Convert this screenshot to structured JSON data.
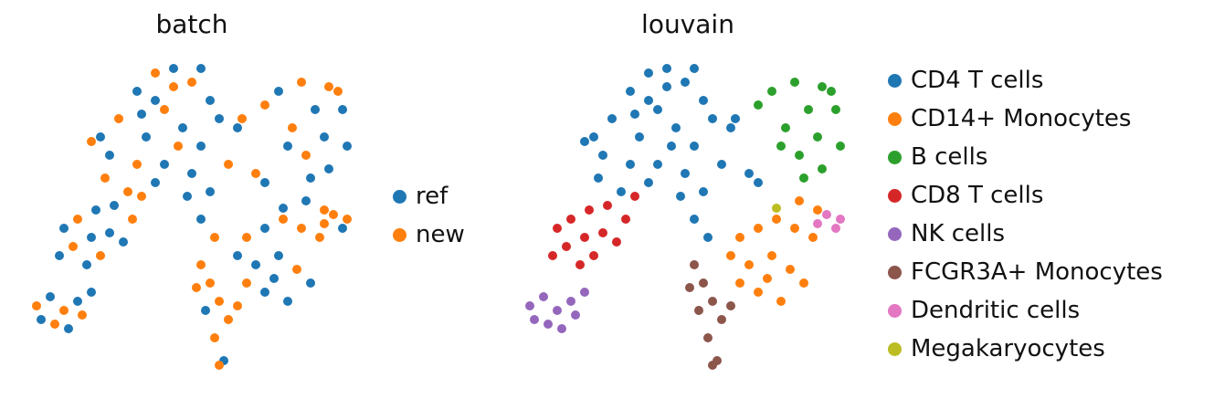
{
  "chart_data": [
    {
      "type": "scatter",
      "title": "batch",
      "color_by": "batch",
      "categories": [
        "ref",
        "new"
      ],
      "colors": [
        "#1f77b4",
        "#ff7f0e"
      ],
      "legend_position": "right",
      "axes_visible": false,
      "grid": false
    },
    {
      "type": "scatter",
      "title": "louvain",
      "color_by": "louvain",
      "categories": [
        "CD4 T cells",
        "CD14+ Monocytes",
        "B cells",
        "CD8 T cells",
        "NK cells",
        "FCGR3A+ Monocytes",
        "Dendritic cells",
        "Megakaryocytes"
      ],
      "colors": [
        "#1f77b4",
        "#ff7f0e",
        "#2ca02c",
        "#d62728",
        "#9467bd",
        "#8c564b",
        "#e377c2",
        "#bcbd22"
      ],
      "legend_position": "right",
      "axes_visible": false,
      "grid": false
    }
  ],
  "points_fields": [
    "x",
    "y",
    "louvain",
    "batch"
  ],
  "points": [
    [
      90,
      270,
      0,
      0
    ],
    [
      110,
      290,
      0,
      1
    ],
    [
      130,
      320,
      0,
      0
    ],
    [
      150,
      340,
      0,
      1
    ],
    [
      170,
      345,
      0,
      0
    ],
    [
      190,
      330,
      0,
      1
    ],
    [
      210,
      310,
      0,
      0
    ],
    [
      160,
      300,
      0,
      1
    ],
    [
      140,
      270,
      0,
      0
    ],
    [
      180,
      280,
      0,
      0
    ],
    [
      200,
      260,
      0,
      0
    ],
    [
      220,
      290,
      0,
      0
    ],
    [
      240,
      280,
      0,
      0
    ],
    [
      130,
      240,
      0,
      1
    ],
    [
      160,
      240,
      0,
      0
    ],
    [
      190,
      230,
      0,
      0
    ],
    [
      100,
      250,
      0,
      0
    ],
    [
      80,
      265,
      0,
      1
    ],
    [
      120,
      210,
      0,
      1
    ],
    [
      150,
      220,
      0,
      0
    ],
    [
      210,
      210,
      0,
      0
    ],
    [
      230,
      240,
      0,
      1
    ],
    [
      260,
      230,
      0,
      1
    ],
    [
      200,
      180,
      0,
      0
    ],
    [
      215,
      160,
      0,
      1
    ],
    [
      150,
      310,
      0,
      0
    ],
    [
      175,
      260,
      0,
      1
    ],
    [
      135,
      295,
      0,
      0
    ],
    [
      95,
      225,
      0,
      1
    ],
    [
      245,
      290,
      0,
      1
    ],
    [
      270,
      220,
      0,
      0
    ],
    [
      185,
      205,
      0,
      0
    ],
    [
      170,
      325,
      0,
      1
    ],
    [
      200,
      345,
      0,
      0
    ],
    [
      285,
      320,
      2,
      0
    ],
    [
      310,
      330,
      2,
      1
    ],
    [
      340,
      325,
      2,
      1
    ],
    [
      355,
      300,
      2,
      0
    ],
    [
      325,
      300,
      2,
      0
    ],
    [
      300,
      280,
      2,
      1
    ],
    [
      335,
      270,
      2,
      0
    ],
    [
      360,
      260,
      2,
      0
    ],
    [
      315,
      250,
      2,
      1
    ],
    [
      340,
      235,
      2,
      0
    ],
    [
      295,
      260,
      2,
      0
    ],
    [
      270,
      305,
      2,
      1
    ],
    [
      350,
      320,
      2,
      1
    ],
    [
      320,
      225,
      2,
      0
    ],
    [
      50,
      170,
      3,
      0
    ],
    [
      65,
      180,
      3,
      1
    ],
    [
      85,
      190,
      3,
      0
    ],
    [
      105,
      195,
      3,
      0
    ],
    [
      125,
      180,
      3,
      1
    ],
    [
      80,
      160,
      3,
      0
    ],
    [
      60,
      150,
      3,
      1
    ],
    [
      45,
      140,
      3,
      0
    ],
    [
      100,
      165,
      3,
      0
    ],
    [
      135,
      205,
      3,
      1
    ],
    [
      75,
      130,
      3,
      0
    ],
    [
      90,
      140,
      3,
      1
    ],
    [
      115,
      155,
      3,
      0
    ],
    [
      20,
      85,
      4,
      1
    ],
    [
      35,
      95,
      4,
      0
    ],
    [
      50,
      80,
      4,
      1
    ],
    [
      65,
      90,
      4,
      0
    ],
    [
      40,
      65,
      4,
      1
    ],
    [
      25,
      70,
      4,
      0
    ],
    [
      55,
      60,
      4,
      0
    ],
    [
      70,
      75,
      4,
      1
    ],
    [
      80,
      100,
      4,
      0
    ],
    [
      250,
      160,
      1,
      1
    ],
    [
      270,
      170,
      1,
      0
    ],
    [
      290,
      180,
      1,
      1
    ],
    [
      310,
      170,
      1,
      1
    ],
    [
      330,
      160,
      1,
      1
    ],
    [
      260,
      130,
      1,
      0
    ],
    [
      285,
      140,
      1,
      0
    ],
    [
      305,
      125,
      1,
      1
    ],
    [
      320,
      110,
      1,
      0
    ],
    [
      270,
      100,
      1,
      0
    ],
    [
      295,
      90,
      1,
      0
    ],
    [
      250,
      110,
      1,
      1
    ],
    [
      335,
      190,
      1,
      1
    ],
    [
      315,
      200,
      1,
      0
    ],
    [
      280,
      115,
      1,
      0
    ],
    [
      240,
      140,
      1,
      0
    ],
    [
      200,
      130,
      5,
      1
    ],
    [
      210,
      110,
      5,
      1
    ],
    [
      220,
      90,
      5,
      1
    ],
    [
      205,
      80,
      5,
      0
    ],
    [
      230,
      70,
      5,
      1
    ],
    [
      215,
      50,
      5,
      1
    ],
    [
      225,
      25,
      5,
      0
    ],
    [
      195,
      105,
      5,
      1
    ],
    [
      240,
      85,
      5,
      1
    ],
    [
      220,
      20,
      5,
      1
    ],
    [
      345,
      185,
      6,
      1
    ],
    [
      360,
      180,
      6,
      1
    ],
    [
      355,
      170,
      6,
      0
    ],
    [
      335,
      175,
      6,
      1
    ],
    [
      290,
      192,
      7,
      0
    ]
  ]
}
